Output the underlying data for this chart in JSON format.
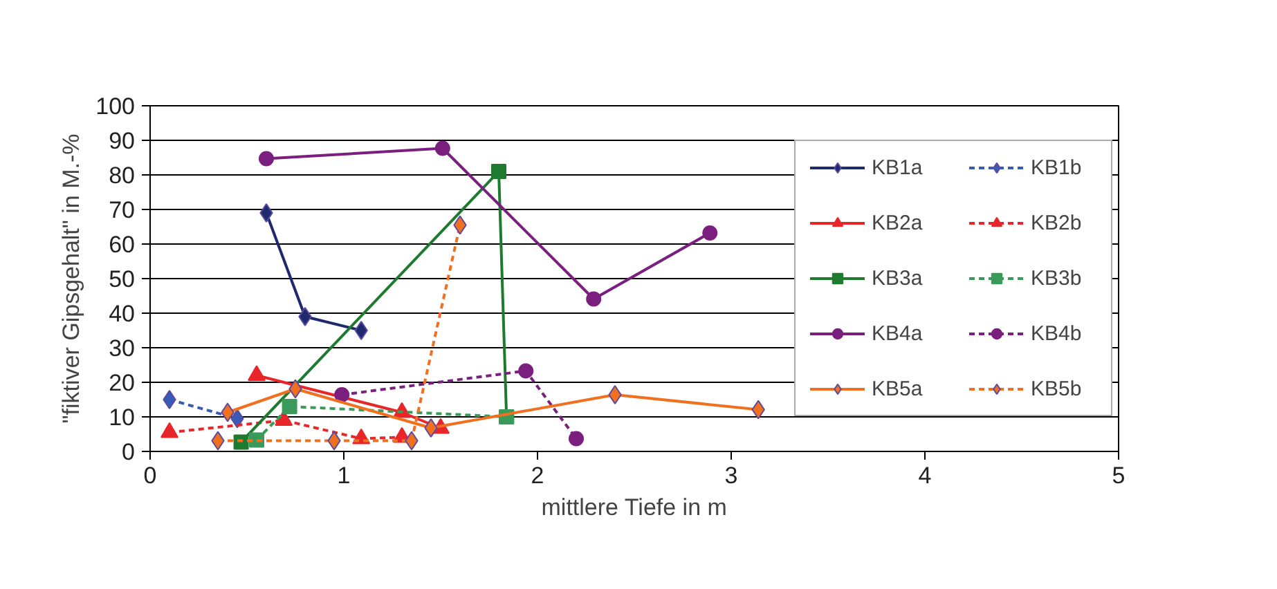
{
  "chart_data": {
    "type": "line",
    "xlabel": "mittlere Tiefe in m",
    "ylabel": "\"fiktiver Gipsgehalt\" in M.-%",
    "xlim": [
      0,
      5
    ],
    "xticks": [
      0,
      1,
      2,
      3,
      4,
      5
    ],
    "ylim": [
      0,
      100
    ],
    "yticks": [
      0,
      10,
      20,
      30,
      40,
      50,
      60,
      70,
      80,
      90,
      100
    ],
    "grid": "y",
    "legend": "right",
    "series": [
      {
        "name": "KB1a",
        "color": "#1f2a6e",
        "marker": "diamond",
        "line_style": "solid",
        "x": [
          0.6,
          0.8,
          1.09
        ],
        "values": [
          69,
          39,
          35
        ]
      },
      {
        "name": "KB1b",
        "color": "#3a5bb5",
        "marker": "diamond",
        "line_style": "dashed",
        "x": [
          0.1,
          0.45
        ],
        "values": [
          15,
          9.5
        ]
      },
      {
        "name": "KB2a",
        "color": "#e8262a",
        "marker": "triangle",
        "line_style": "solid",
        "x": [
          0.55,
          1.3,
          1.5
        ],
        "values": [
          22,
          11.3,
          6.7
        ]
      },
      {
        "name": "KB2b",
        "color": "#e8262a",
        "marker": "triangle",
        "line_style": "dashed",
        "x": [
          0.1,
          0.69,
          1.09,
          1.3
        ],
        "values": [
          5.5,
          9,
          3.7,
          4.1
        ]
      },
      {
        "name": "KB3a",
        "color": "#1e7a2e",
        "marker": "square",
        "line_style": "solid",
        "x": [
          0.47,
          1.8,
          1.84
        ],
        "values": [
          2.7,
          81,
          10
        ]
      },
      {
        "name": "KB3b",
        "color": "#3a9a5a",
        "marker": "square",
        "line_style": "dashed",
        "x": [
          0.55,
          0.72,
          1.84
        ],
        "values": [
          3.3,
          13,
          10
        ]
      },
      {
        "name": "KB4a",
        "color": "#7b1f7f",
        "marker": "circle",
        "line_style": "solid",
        "x": [
          0.6,
          1.51,
          2.29,
          2.89
        ],
        "values": [
          84.7,
          87.7,
          44.1,
          63.2
        ]
      },
      {
        "name": "KB4b",
        "color": "#7b1f7f",
        "marker": "circle",
        "line_style": "dashed",
        "x": [
          0.99,
          1.94,
          2.2
        ],
        "values": [
          16.4,
          23.3,
          3.7
        ]
      },
      {
        "name": "KB5a",
        "color": "#f07020",
        "marker": "diamond",
        "line_style": "solid",
        "x": [
          0.4,
          0.75,
          1.45,
          2.4,
          3.14
        ],
        "values": [
          11.3,
          18.1,
          6.8,
          16.4,
          12.1
        ]
      },
      {
        "name": "KB5b",
        "color": "#f07020",
        "marker": "diamond",
        "line_style": "dashed",
        "x": [
          0.35,
          0.95,
          1.35,
          1.6
        ],
        "values": [
          3.1,
          3.1,
          3.1,
          65.5
        ]
      }
    ]
  }
}
